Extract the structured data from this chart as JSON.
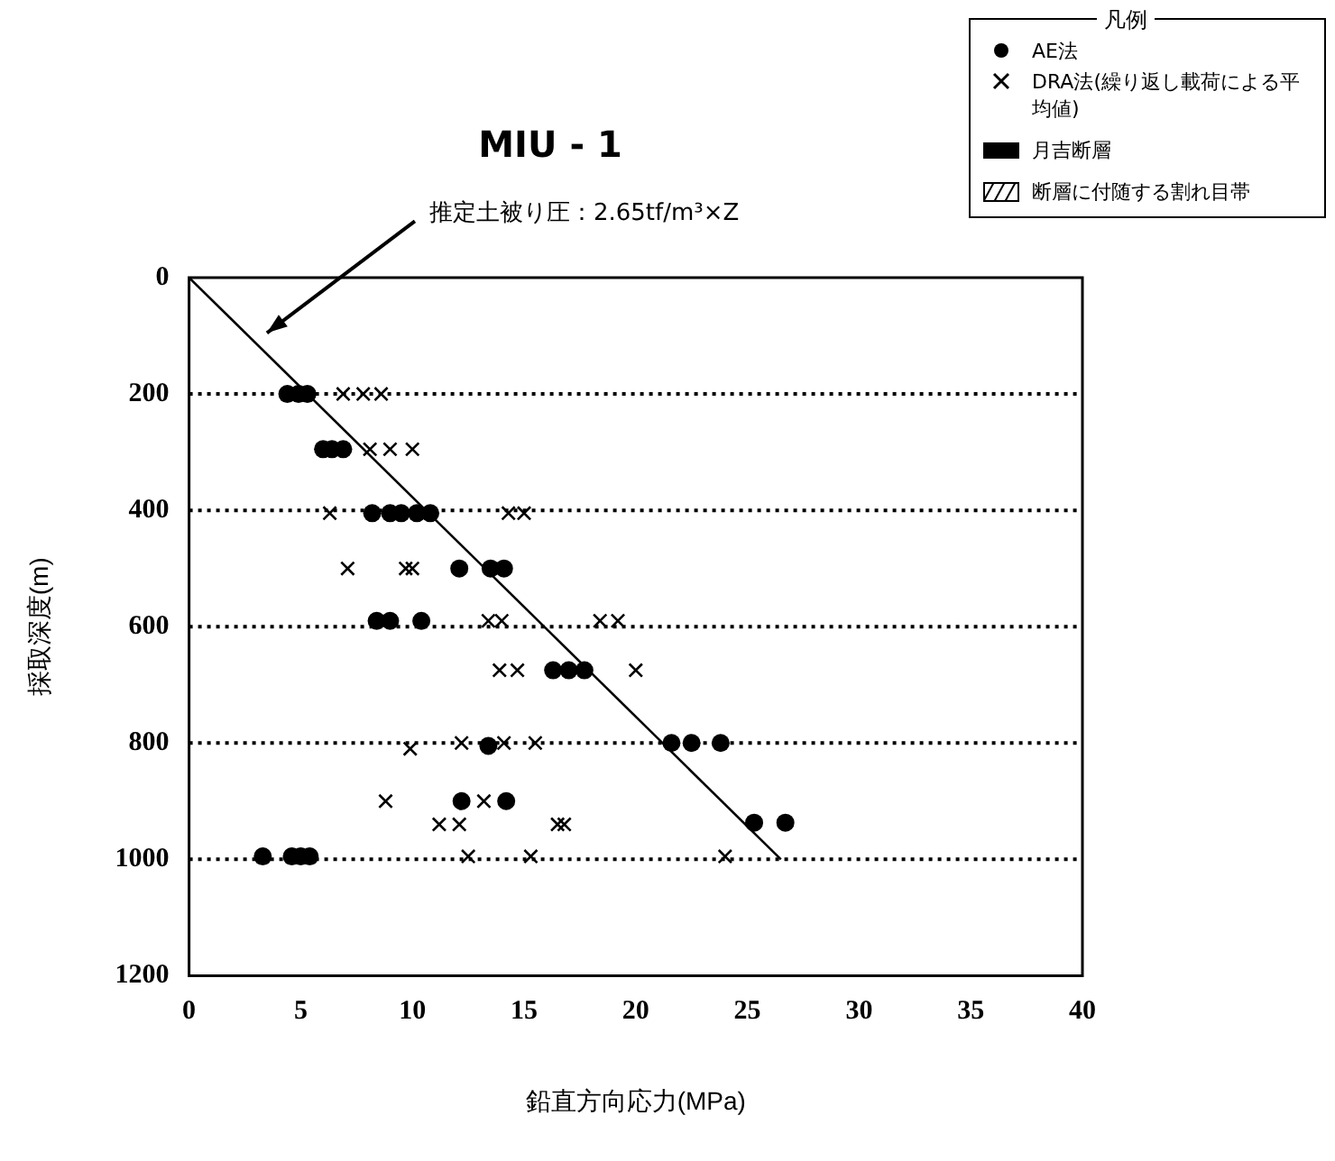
{
  "chart_data": {
    "type": "scatter",
    "title": "MIU - 1",
    "xlabel": "鉛直方向応力(MPa)",
    "ylabel": "採取深度(m)",
    "legend_title": "凡例",
    "legend": "top right",
    "grid": "y",
    "xlim": [
      0,
      40
    ],
    "xticks": [
      0,
      5,
      10,
      15,
      20,
      25,
      30,
      35,
      40
    ],
    "ylim": [
      1200,
      0
    ],
    "yticks": [
      0,
      200,
      400,
      600,
      800,
      1000,
      1200
    ],
    "annotations": [
      "推定土被り圧：2.65tf/m³×Z"
    ],
    "series": [
      {
        "name": "AE法",
        "marker": "circle",
        "color": "#000000",
        "x": [
          4.4,
          4.9,
          5.3,
          6.0,
          6.4,
          6.9,
          8.2,
          9.0,
          9.5,
          10.2,
          10.8,
          12.1,
          13.5,
          14.1,
          8.4,
          9.0,
          10.4,
          16.3,
          17.0,
          17.7,
          13.4,
          21.6,
          22.5,
          23.8,
          12.2,
          14.2,
          25.3,
          26.7,
          3.3,
          4.6,
          5.0,
          5.4
        ],
        "values": [
          200,
          200,
          200,
          295,
          295,
          295,
          405,
          405,
          405,
          405,
          405,
          500,
          500,
          500,
          590,
          590,
          590,
          675,
          675,
          675,
          805,
          800,
          800,
          800,
          900,
          900,
          937,
          937,
          995,
          995,
          995,
          995
        ]
      },
      {
        "name": "DRA法(繰り返し載荷による平均値)",
        "marker": "cross",
        "color": "#000000",
        "x": [
          6.9,
          7.8,
          8.6,
          8.1,
          9.0,
          10.0,
          6.3,
          14.3,
          15.0,
          7.1,
          9.7,
          10.0,
          13.4,
          14.0,
          18.4,
          19.2,
          13.9,
          14.7,
          20.0,
          9.9,
          12.2,
          14.1,
          15.5,
          8.8,
          13.2,
          11.2,
          12.1,
          16.5,
          16.8,
          12.5,
          15.3,
          24.0
        ],
        "values": [
          200,
          200,
          200,
          295,
          295,
          295,
          405,
          405,
          405,
          500,
          500,
          500,
          590,
          590,
          590,
          590,
          675,
          675,
          675,
          810,
          800,
          800,
          800,
          900,
          900,
          940,
          940,
          940,
          940,
          995,
          995,
          995
        ]
      },
      {
        "name": "月吉断層",
        "type": "bar",
        "color": "#000000"
      },
      {
        "name": "断層に付随する割れ目帯",
        "type": "bar",
        "color": "#000000"
      },
      {
        "type": "line",
        "marker": "none",
        "color": "#000000",
        "x": [
          0,
          26.5
        ],
        "values": [
          0,
          1000
        ]
      }
    ]
  }
}
